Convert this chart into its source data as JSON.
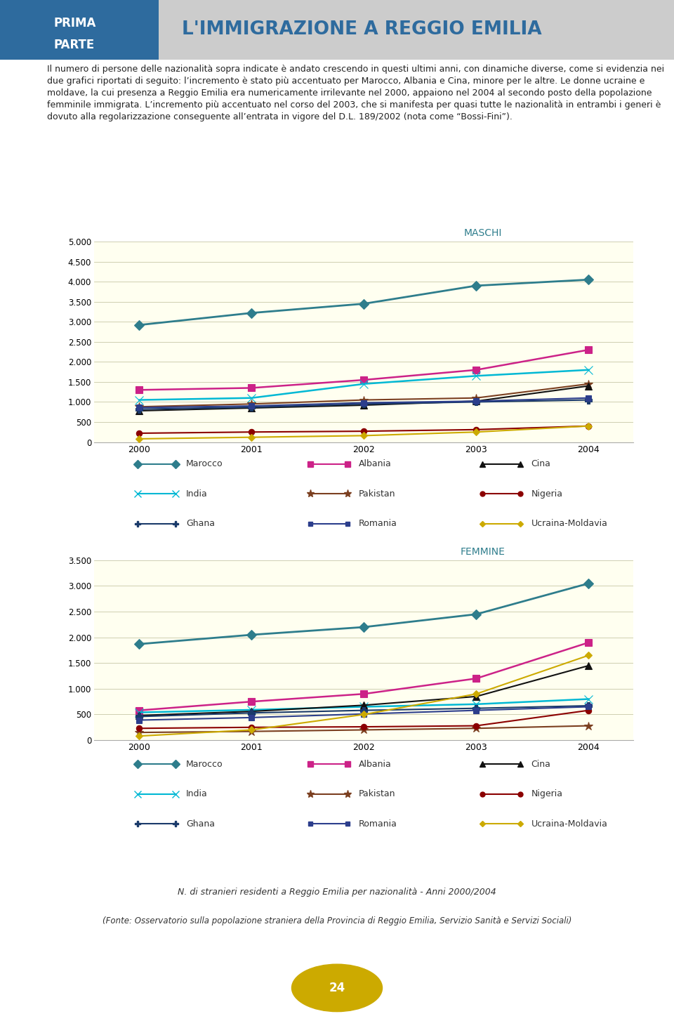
{
  "years": [
    2000,
    2001,
    2002,
    2003,
    2004
  ],
  "maschi": {
    "title": "MASCHI",
    "ylim": [
      0,
      5000
    ],
    "yticks": [
      0,
      500,
      1000,
      1500,
      2000,
      2500,
      3000,
      3500,
      4000,
      4500,
      5000
    ],
    "series": {
      "Marocco": {
        "values": [
          2920,
          3220,
          3450,
          3900,
          4050
        ],
        "color": "#2e7d8c",
        "marker": "D",
        "ms": 7,
        "lw": 2.0
      },
      "Albania": {
        "values": [
          1300,
          1350,
          1550,
          1800,
          2300
        ],
        "color": "#cc2288",
        "marker": "s",
        "ms": 7,
        "lw": 1.8
      },
      "India": {
        "values": [
          1050,
          1100,
          1450,
          1650,
          1800
        ],
        "color": "#00b8d4",
        "marker": "x",
        "ms": 8,
        "lw": 1.8
      },
      "Pakistan": {
        "values": [
          880,
          950,
          1050,
          1100,
          1450
        ],
        "color": "#7b3f20",
        "marker": "*",
        "ms": 9,
        "lw": 1.5
      },
      "Cina": {
        "values": [
          780,
          850,
          920,
          1020,
          1400
        ],
        "color": "#111111",
        "marker": "^",
        "ms": 7,
        "lw": 1.5
      },
      "Nigeria": {
        "values": [
          220,
          250,
          270,
          310,
          400
        ],
        "color": "#8b0000",
        "marker": "o",
        "ms": 6,
        "lw": 1.5
      },
      "Ghana": {
        "values": [
          820,
          870,
          950,
          1000,
          1050
        ],
        "color": "#1a3a6a",
        "marker": "P",
        "ms": 7,
        "lw": 1.5
      },
      "Romania": {
        "values": [
          860,
          900,
          980,
          1020,
          1100
        ],
        "color": "#2c3e8c",
        "marker": "s",
        "ms": 6,
        "lw": 1.5
      },
      "Ucraina-Moldavia": {
        "values": [
          80,
          120,
          160,
          250,
          400
        ],
        "color": "#ccaa00",
        "marker": "D",
        "ms": 5,
        "lw": 1.5
      }
    }
  },
  "femmine": {
    "title": "FEMMINE",
    "ylim": [
      0,
      3500
    ],
    "yticks": [
      0,
      500,
      1000,
      1500,
      2000,
      2500,
      3000,
      3500
    ],
    "series": {
      "Marocco": {
        "values": [
          1870,
          2050,
          2200,
          2450,
          3050
        ],
        "color": "#2e7d8c",
        "marker": "D",
        "ms": 7,
        "lw": 2.0
      },
      "Albania": {
        "values": [
          580,
          750,
          900,
          1200,
          1900
        ],
        "color": "#cc2288",
        "marker": "s",
        "ms": 7,
        "lw": 1.8
      },
      "India": {
        "values": [
          540,
          590,
          650,
          700,
          800
        ],
        "color": "#00b8d4",
        "marker": "x",
        "ms": 8,
        "lw": 1.8
      },
      "Pakistan": {
        "values": [
          150,
          170,
          200,
          230,
          280
        ],
        "color": "#7b3f20",
        "marker": "*",
        "ms": 9,
        "lw": 1.5
      },
      "Cina": {
        "values": [
          480,
          560,
          680,
          850,
          1450
        ],
        "color": "#111111",
        "marker": "^",
        "ms": 7,
        "lw": 1.5
      },
      "Nigeria": {
        "values": [
          230,
          250,
          260,
          280,
          580
        ],
        "color": "#8b0000",
        "marker": "o",
        "ms": 6,
        "lw": 1.5
      },
      "Ghana": {
        "values": [
          460,
          530,
          580,
          620,
          670
        ],
        "color": "#1a3a6a",
        "marker": "P",
        "ms": 7,
        "lw": 1.5
      },
      "Romania": {
        "values": [
          390,
          440,
          510,
          580,
          650
        ],
        "color": "#2c3e8c",
        "marker": "s",
        "ms": 6,
        "lw": 1.5
      },
      "Ucraina-Moldavia": {
        "values": [
          80,
          200,
          500,
          900,
          1650
        ],
        "color": "#ccaa00",
        "marker": "D",
        "ms": 5,
        "lw": 1.5
      }
    }
  },
  "chart_bg": "#fffff0",
  "page_bg": "#ffffff",
  "header_left_bg": "#2e6b9e",
  "header_right_bg": "#cccccc",
  "title_color": "#2e6b9e",
  "maschi_title_color": "#2e7d8c",
  "femmine_title_color": "#2e7d8c",
  "body_text": "Il numero di persone delle nazionalità sopra indicate è andato crescendo in questi ultimi anni, con dinamiche diverse, come si evidenzia nei due grafici riportati di seguito: l’incremento è stato più accentuato per Marocco, Albania e Cina, minore per le altre. Le donne ucraine e moldave, la cui presenza a Reggio Emilia era numericamente irrilevante nel 2000, appaiono nel 2004 al secondo posto della popolazione femminile immigrata. L’incremento più accentuato nel corso del 2003, che si manifesta per quasi tutte le nazionalità in entrambi i generi è dovuto alla regolarizzazione conseguente all’entrata in vigore del D.L. 189/2002 (nota come “Bossi-Fini”).",
  "footer_text1": "N. di stranieri residenti a Reggio Emilia per nazionalità - Anni 2000/2004",
  "footer_text2": "(Fonte: Osservatorio sulla popolazione straniera della Provincia di Reggio Emilia, Servizio Sanità e Servizi Sociali)",
  "page_num": "24",
  "legend_order": [
    "Marocco",
    "Albania",
    "Cina",
    "India",
    "Pakistan",
    "Nigeria",
    "Ghana",
    "Romania",
    "Ucraina-Moldavia"
  ]
}
